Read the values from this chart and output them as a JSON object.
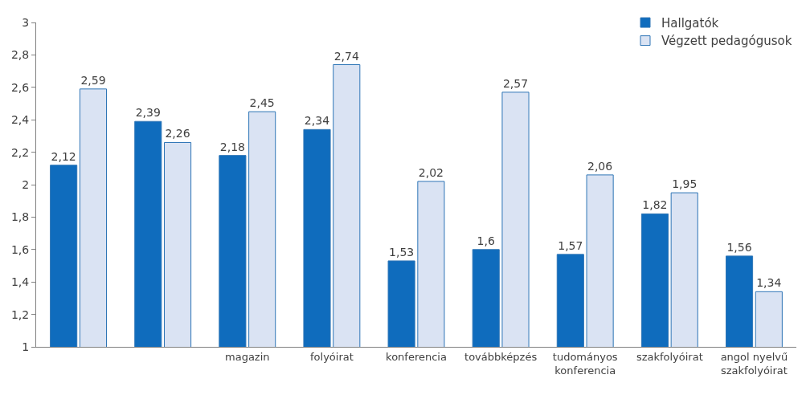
{
  "chart_data": {
    "type": "bar",
    "categories": [
      null,
      null,
      "magazin",
      "folyóirat",
      "konferencia",
      "továbbképzés",
      "tudományos\nkonferencia",
      "szakfolyóirat",
      "angol nyelvű\nszakfolyóirat"
    ],
    "series": [
      {
        "name": "Hallgatók",
        "color": "#0f6cbd",
        "values": [
          2.12,
          2.39,
          2.18,
          2.34,
          1.53,
          1.6,
          1.57,
          1.82,
          1.56
        ],
        "value_labels": [
          "2,12",
          "2,39",
          "2,18",
          "2,34",
          "1,53",
          "1,6",
          "1,57",
          "1,82",
          "1,56"
        ]
      },
      {
        "name": "Végzett pedagógusok",
        "color": "#dae3f3",
        "values": [
          2.59,
          2.26,
          2.45,
          2.74,
          2.02,
          2.57,
          2.06,
          1.95,
          1.34
        ],
        "value_labels": [
          "2,59",
          "2,26",
          "2,45",
          "2,74",
          "2,02",
          "2,57",
          "2,06",
          "1,95",
          "1,34"
        ]
      }
    ],
    "ylim": [
      1,
      3
    ],
    "yticks": [
      1,
      {
        "value": 1.2,
        "label": "1,2"
      },
      {
        "value": 1.4,
        "label": "1,4"
      },
      {
        "value": 1.6,
        "label": "1,6"
      },
      {
        "value": 1.8,
        "label": "1,8"
      },
      2,
      {
        "value": 2.2,
        "label": "2,2"
      },
      {
        "value": 2.4,
        "label": "2,4"
      },
      {
        "value": 2.6,
        "label": "2,6"
      },
      {
        "value": 2.8,
        "label": "2,8"
      },
      3
    ],
    "legend": "top right"
  }
}
